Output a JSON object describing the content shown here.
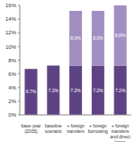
{
  "chart_data": {
    "type": "bar",
    "stacked": true,
    "data_labels": true,
    "grid": false,
    "categories": [
      "base year (2005)",
      "baseline scenario",
      "+ foreign transfers",
      "+ foreign borrowing",
      "+ foreign transfers and direct loans"
    ],
    "series": [
      {
        "color": "#5d4384",
        "values": [
          6.7,
          7.2,
          7.2,
          7.2,
          7.2
        ],
        "value_labels": [
          "6.7%",
          "7.2%",
          "7.2%",
          "7.2%",
          "7.2%"
        ]
      },
      {
        "color": "#a18fc2",
        "values": [
          null,
          null,
          8.0,
          8.0,
          8.8
        ],
        "value_labels": [
          null,
          null,
          "8.0%",
          "8.0%",
          "8.8%"
        ]
      }
    ],
    "ylim": [
      0,
      16
    ],
    "yticks": [
      {
        "value": 0,
        "label": "0%"
      },
      {
        "value": 2,
        "label": "2%"
      },
      {
        "value": 4,
        "label": "4%"
      },
      {
        "value": 6,
        "label": "6%"
      },
      {
        "value": 8,
        "label": "8%"
      },
      {
        "value": 10,
        "label": "10%"
      },
      {
        "value": 12,
        "label": "12%"
      },
      {
        "value": 14,
        "label": "14%"
      },
      {
        "value": 16,
        "label": "16%"
      }
    ]
  }
}
